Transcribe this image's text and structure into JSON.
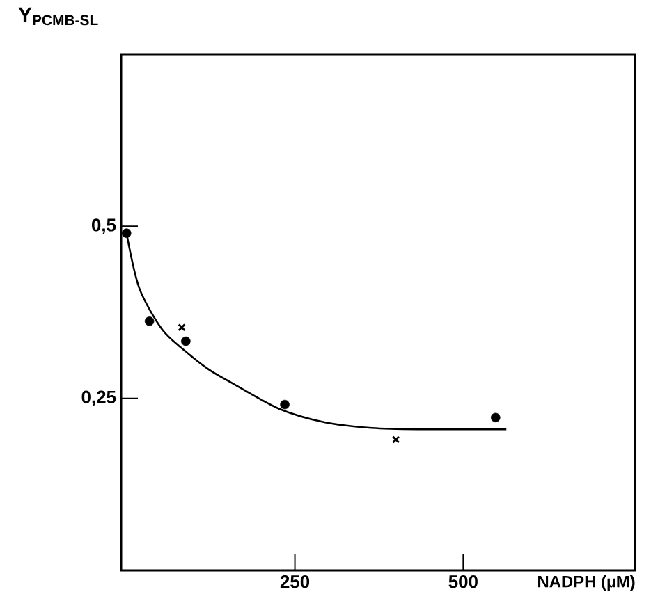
{
  "chart_data": {
    "type": "scatter",
    "xlabel": "NADPH (µM)",
    "ylabel": "Y$_{PCMB-SL}$",
    "xlim": [
      -8,
      755
    ],
    "ylim": [
      0,
      0.75
    ],
    "xticks": [
      250,
      500
    ],
    "yticks": [
      {
        "value": 0.25,
        "label": "0,25"
      },
      {
        "value": 0.5,
        "label": "0,5"
      }
    ],
    "series": [
      {
        "marker": "circle",
        "color": "#000000",
        "x": [
          0,
          34,
          88,
          235,
          548
        ],
        "values": [
          0.49,
          0.362,
          0.333,
          0.241,
          0.222
        ]
      },
      {
        "marker": "cross",
        "color": "#000000",
        "x": [
          82,
          400
        ],
        "values": [
          0.353,
          0.19
        ]
      },
      {
        "type": "line",
        "marker": "none",
        "line_style": "solid",
        "color": "#000000",
        "x": [
          0,
          19,
          53,
          88,
          122,
          157,
          226,
          295,
          364,
          433,
          564
        ],
        "values": [
          0.49,
          0.41,
          0.35,
          0.318,
          0.292,
          0.272,
          0.235,
          0.215,
          0.207,
          0.205,
          0.205
        ]
      }
    ]
  }
}
